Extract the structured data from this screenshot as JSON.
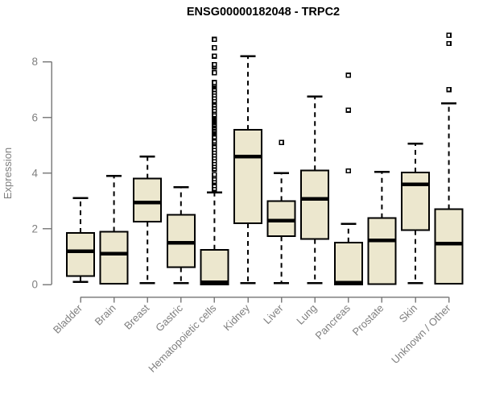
{
  "title": "ENSG00000182048 - TRPC2",
  "chart_data": {
    "type": "boxplot",
    "title": "ENSG00000182048 - TRPC2",
    "xlabel": "",
    "ylabel": "Expression",
    "ylim": [
      0,
      9.1
    ],
    "yticks": [
      0,
      2,
      4,
      6,
      8
    ],
    "grid": false,
    "legend": "none",
    "categories": [
      "Bladder",
      "Brain",
      "Breast",
      "Gastric",
      "Hematopoietic cells",
      "Kidney",
      "Liver",
      "Lung",
      "Pancreas",
      "Prostate",
      "Skin",
      "Unknown / Other"
    ],
    "boxes": [
      {
        "label": "Bladder",
        "whislo": 0.1,
        "q1": 0.3,
        "med": 1.2,
        "q3": 1.85,
        "whishi": 3.1,
        "outliers": []
      },
      {
        "label": "Brain",
        "whislo": 0.03,
        "q1": 0.03,
        "med": 1.1,
        "q3": 1.9,
        "whishi": 3.9,
        "outliers": []
      },
      {
        "label": "Breast",
        "whislo": 0.05,
        "q1": 2.25,
        "med": 2.95,
        "q3": 3.8,
        "whishi": 4.6,
        "outliers": []
      },
      {
        "label": "Gastric",
        "whislo": 0.05,
        "q1": 0.62,
        "med": 1.5,
        "q3": 2.5,
        "whishi": 3.5,
        "outliers": []
      },
      {
        "label": "Hematopoietic cells",
        "whislo": 0.0,
        "q1": 0.0,
        "med": 0.08,
        "q3": 1.25,
        "whishi": 3.3,
        "outliers": [
          3.4,
          3.45,
          3.55,
          3.65,
          3.7,
          3.8,
          3.9,
          3.95,
          4.15,
          4.25,
          4.35,
          4.45,
          4.55,
          4.65,
          4.75,
          4.85,
          4.95,
          5.05,
          5.1,
          5.15,
          5.25,
          5.3,
          5.4,
          5.45,
          5.5,
          5.55,
          5.6,
          5.65,
          5.7,
          5.75,
          5.8,
          5.85,
          5.9,
          5.95,
          6.0,
          6.05,
          6.1,
          6.2,
          6.25,
          6.35,
          6.45,
          6.55,
          6.6,
          6.7,
          6.8,
          6.9,
          7.0,
          7.1,
          7.15,
          7.2,
          7.25,
          7.6,
          7.8,
          7.85,
          7.9,
          8.2,
          8.5,
          8.8
        ]
      },
      {
        "label": "Kidney",
        "whislo": 0.05,
        "q1": 2.2,
        "med": 4.6,
        "q3": 5.55,
        "whishi": 8.2,
        "outliers": []
      },
      {
        "label": "Liver",
        "whislo": 0.05,
        "q1": 1.73,
        "med": 2.3,
        "q3": 3.0,
        "whishi": 4.0,
        "outliers": [
          5.1
        ]
      },
      {
        "label": "Lung",
        "whislo": 0.05,
        "q1": 1.63,
        "med": 3.08,
        "q3": 4.1,
        "whishi": 6.75,
        "outliers": []
      },
      {
        "label": "Pancreas",
        "whislo": 0.0,
        "q1": 0.0,
        "med": 0.06,
        "q3": 1.51,
        "whishi": 2.17,
        "outliers": [
          4.08,
          6.26,
          7.51
        ]
      },
      {
        "label": "Prostate",
        "whislo": 0.02,
        "q1": 0.02,
        "med": 1.58,
        "q3": 2.38,
        "whishi": 4.04,
        "outliers": []
      },
      {
        "label": "Skin",
        "whislo": 0.05,
        "q1": 1.95,
        "med": 3.6,
        "q3": 4.02,
        "whishi": 5.05,
        "outliers": []
      },
      {
        "label": "Unknown / Other",
        "whislo": 0.03,
        "q1": 0.03,
        "med": 1.47,
        "q3": 2.7,
        "whishi": 6.5,
        "outliers": [
          7.0,
          8.65,
          8.95
        ]
      }
    ],
    "colors": {
      "box_fill": "#ECE7CE",
      "box_border": "#000000",
      "median": "#000000",
      "whisker": "#000000",
      "axis": "#7F7F7F",
      "tick_label": "#7F7F7F",
      "axis_title": "#7F7F7F",
      "title": "#000000",
      "background": "#FFFFFF"
    }
  }
}
